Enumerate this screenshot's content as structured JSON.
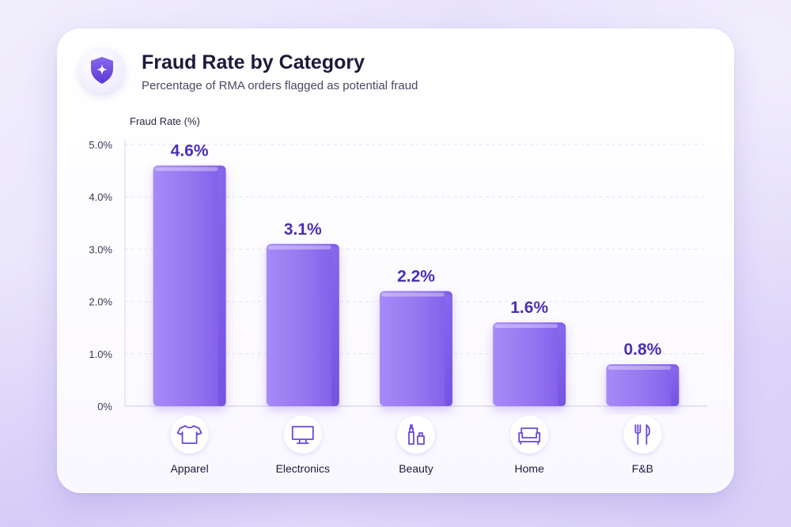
{
  "title": "Fraud Rate by Category",
  "subtitle": "Percentage of RMA orders flagged as potential fraud",
  "colors": {
    "bar": "#9b7cf2",
    "bar_dark": "#7a57e6",
    "value_label": "#4a2fb4",
    "icon": "#6a48d8"
  },
  "chart_data": {
    "type": "bar",
    "ylabel": "Fraud Rate (%)",
    "ylim": [
      0,
      5.0
    ],
    "yticks": [
      "0%",
      "1.0%",
      "2.0%",
      "3.0%",
      "4.0%",
      "5.0%"
    ],
    "ytick_values": [
      0,
      1,
      2,
      3,
      4,
      5
    ],
    "grid": true,
    "categories": [
      "Apparel",
      "Electronics",
      "Beauty",
      "Home",
      "F&B"
    ],
    "values": [
      4.6,
      3.1,
      2.2,
      1.6,
      0.8
    ],
    "value_labels": [
      "4.6%",
      "3.1%",
      "2.2%",
      "1.6%",
      "0.8%"
    ],
    "category_icons": [
      "tshirt-icon",
      "monitor-icon",
      "cosmetics-icon",
      "sofa-icon",
      "fork-knife-icon"
    ]
  }
}
